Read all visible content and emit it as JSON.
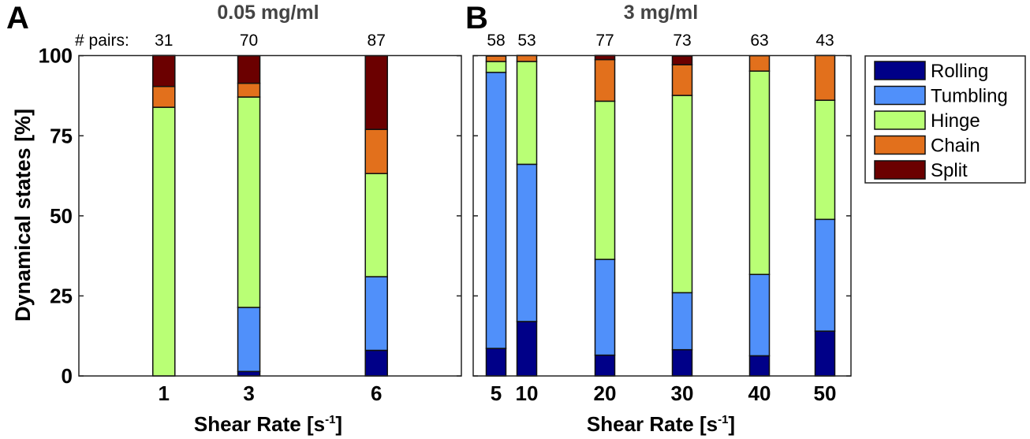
{
  "chart_data": [
    {
      "type": "bar",
      "stacked": true,
      "panel_label": "A",
      "title": "0.05 mg/ml",
      "xlabel": "Shear Rate [s",
      "xlabel_sup": "-1",
      "xlabel_close": "]",
      "ylabel": "Dynamical states [%]",
      "ylim": [
        0,
        100
      ],
      "xlim": [
        -1,
        8
      ],
      "yticks": [
        "0",
        "25",
        "50",
        "75",
        "100"
      ],
      "pairs_label": "# pairs:",
      "categories": [
        "1",
        "3",
        "6"
      ],
      "x": [
        1,
        3,
        6
      ],
      "pairs": [
        "31",
        "70",
        "87"
      ],
      "series": [
        {
          "name": "Rolling",
          "values": [
            0,
            1.4,
            8.0
          ]
        },
        {
          "name": "Tumbling",
          "values": [
            0,
            20.0,
            23.0
          ]
        },
        {
          "name": "Hinge",
          "values": [
            83.9,
            65.7,
            32.2
          ]
        },
        {
          "name": "Chain",
          "values": [
            6.5,
            4.3,
            13.8
          ]
        },
        {
          "name": "Split",
          "values": [
            9.7,
            8.6,
            23.0
          ]
        }
      ]
    },
    {
      "type": "bar",
      "stacked": true,
      "panel_label": "B",
      "title": "3 mg/ml",
      "xlabel": "Shear Rate [s",
      "xlabel_sup": "-1",
      "xlabel_close": "]",
      "ylim": [
        0,
        100
      ],
      "categories": [
        "5",
        "10",
        "20",
        "30",
        "40",
        "50"
      ],
      "pairs": [
        "58",
        "53",
        "77",
        "73",
        "63",
        "43"
      ],
      "series": [
        {
          "name": "Rolling",
          "values": [
            8.6,
            17.0,
            6.5,
            8.2,
            6.3,
            14.0
          ]
        },
        {
          "name": "Tumbling",
          "values": [
            86.2,
            49.1,
            29.9,
            17.8,
            25.4,
            34.9
          ]
        },
        {
          "name": "Hinge",
          "values": [
            3.4,
            32.1,
            49.4,
            61.6,
            63.5,
            37.2
          ]
        },
        {
          "name": "Chain",
          "values": [
            1.7,
            1.9,
            13.0,
            9.6,
            4.8,
            14.0
          ]
        },
        {
          "name": "Split",
          "values": [
            0,
            0,
            1.3,
            2.7,
            0,
            0
          ]
        }
      ]
    }
  ],
  "legend": {
    "placement": "right",
    "items": [
      "Rolling",
      "Tumbling",
      "Hinge",
      "Chain",
      "Split"
    ]
  },
  "colors": {
    "Rolling": "#000088",
    "Tumbling": "#5090FA",
    "Hinge": "#B9FF75",
    "Chain": "#E2701C",
    "Split": "#6B0000",
    "title": "#444444"
  }
}
